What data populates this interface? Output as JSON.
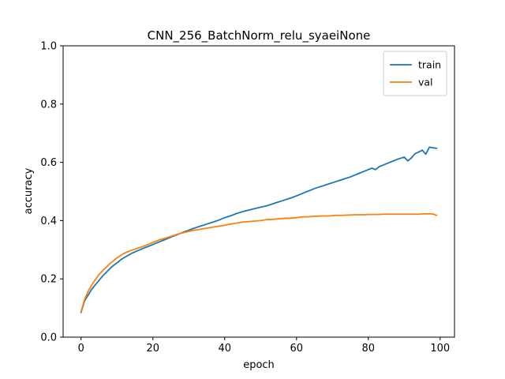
{
  "chart_data": {
    "type": "line",
    "title": "CNN_256_BatchNorm_relu_syaeiNone",
    "xlabel": "epoch",
    "ylabel": "accuracy",
    "xlim": [
      -5,
      104
    ],
    "ylim": [
      0.0,
      1.0
    ],
    "xticks": [
      0,
      20,
      40,
      60,
      80,
      100
    ],
    "yticks": [
      0.0,
      0.2,
      0.4,
      0.6,
      0.8,
      1.0
    ],
    "xtick_labels": [
      "0",
      "20",
      "40",
      "60",
      "80",
      "100"
    ],
    "ytick_labels": [
      "0.0",
      "0.2",
      "0.4",
      "0.6",
      "0.8",
      "1.0"
    ],
    "grid": false,
    "legend": "top-right",
    "series": [
      {
        "name": "train",
        "color": "#1f77b4",
        "points": [
          [
            0,
            0.085
          ],
          [
            1,
            0.125
          ],
          [
            2,
            0.145
          ],
          [
            3,
            0.165
          ],
          [
            4,
            0.18
          ],
          [
            5,
            0.195
          ],
          [
            6,
            0.21
          ],
          [
            7,
            0.222
          ],
          [
            8,
            0.235
          ],
          [
            9,
            0.246
          ],
          [
            10,
            0.255
          ],
          [
            11,
            0.265
          ],
          [
            12,
            0.273
          ],
          [
            13,
            0.28
          ],
          [
            14,
            0.287
          ],
          [
            15,
            0.293
          ],
          [
            16,
            0.298
          ],
          [
            17,
            0.303
          ],
          [
            18,
            0.308
          ],
          [
            19,
            0.313
          ],
          [
            20,
            0.318
          ],
          [
            21,
            0.323
          ],
          [
            22,
            0.328
          ],
          [
            23,
            0.333
          ],
          [
            24,
            0.338
          ],
          [
            25,
            0.343
          ],
          [
            26,
            0.348
          ],
          [
            27,
            0.353
          ],
          [
            28,
            0.358
          ],
          [
            29,
            0.363
          ],
          [
            30,
            0.367
          ],
          [
            31,
            0.372
          ],
          [
            32,
            0.376
          ],
          [
            33,
            0.38
          ],
          [
            34,
            0.384
          ],
          [
            35,
            0.388
          ],
          [
            36,
            0.392
          ],
          [
            37,
            0.396
          ],
          [
            38,
            0.4
          ],
          [
            39,
            0.405
          ],
          [
            40,
            0.41
          ],
          [
            41,
            0.414
          ],
          [
            42,
            0.418
          ],
          [
            43,
            0.423
          ],
          [
            44,
            0.427
          ],
          [
            45,
            0.431
          ],
          [
            46,
            0.434
          ],
          [
            47,
            0.437
          ],
          [
            48,
            0.44
          ],
          [
            49,
            0.443
          ],
          [
            50,
            0.446
          ],
          [
            51,
            0.449
          ],
          [
            52,
            0.452
          ],
          [
            53,
            0.456
          ],
          [
            54,
            0.46
          ],
          [
            55,
            0.464
          ],
          [
            56,
            0.468
          ],
          [
            57,
            0.472
          ],
          [
            58,
            0.476
          ],
          [
            59,
            0.48
          ],
          [
            60,
            0.485
          ],
          [
            61,
            0.49
          ],
          [
            62,
            0.495
          ],
          [
            63,
            0.5
          ],
          [
            64,
            0.505
          ],
          [
            65,
            0.51
          ],
          [
            66,
            0.514
          ],
          [
            67,
            0.518
          ],
          [
            68,
            0.522
          ],
          [
            69,
            0.526
          ],
          [
            70,
            0.53
          ],
          [
            71,
            0.534
          ],
          [
            72,
            0.538
          ],
          [
            73,
            0.542
          ],
          [
            74,
            0.546
          ],
          [
            75,
            0.55
          ],
          [
            76,
            0.555
          ],
          [
            77,
            0.56
          ],
          [
            78,
            0.565
          ],
          [
            79,
            0.57
          ],
          [
            80,
            0.575
          ],
          [
            81,
            0.58
          ],
          [
            82,
            0.575
          ],
          [
            83,
            0.585
          ],
          [
            84,
            0.59
          ],
          [
            85,
            0.595
          ],
          [
            86,
            0.6
          ],
          [
            87,
            0.605
          ],
          [
            88,
            0.61
          ],
          [
            89,
            0.614
          ],
          [
            90,
            0.618
          ],
          [
            91,
            0.605
          ],
          [
            92,
            0.615
          ],
          [
            93,
            0.63
          ],
          [
            94,
            0.635
          ],
          [
            95,
            0.642
          ],
          [
            96,
            0.628
          ],
          [
            97,
            0.652
          ],
          [
            98,
            0.65
          ],
          [
            99,
            0.648
          ]
        ]
      },
      {
        "name": "val",
        "color": "#ff7f0e",
        "points": [
          [
            0,
            0.088
          ],
          [
            1,
            0.13
          ],
          [
            2,
            0.158
          ],
          [
            3,
            0.18
          ],
          [
            4,
            0.198
          ],
          [
            5,
            0.215
          ],
          [
            6,
            0.228
          ],
          [
            7,
            0.24
          ],
          [
            8,
            0.252
          ],
          [
            9,
            0.262
          ],
          [
            10,
            0.272
          ],
          [
            11,
            0.28
          ],
          [
            12,
            0.288
          ],
          [
            13,
            0.293
          ],
          [
            14,
            0.298
          ],
          [
            15,
            0.302
          ],
          [
            16,
            0.306
          ],
          [
            17,
            0.31
          ],
          [
            18,
            0.315
          ],
          [
            19,
            0.32
          ],
          [
            20,
            0.325
          ],
          [
            21,
            0.33
          ],
          [
            22,
            0.335
          ],
          [
            23,
            0.338
          ],
          [
            24,
            0.342
          ],
          [
            25,
            0.346
          ],
          [
            26,
            0.35
          ],
          [
            27,
            0.354
          ],
          [
            28,
            0.357
          ],
          [
            29,
            0.36
          ],
          [
            30,
            0.363
          ],
          [
            31,
            0.366
          ],
          [
            32,
            0.368
          ],
          [
            33,
            0.37
          ],
          [
            34,
            0.372
          ],
          [
            35,
            0.374
          ],
          [
            36,
            0.376
          ],
          [
            37,
            0.378
          ],
          [
            38,
            0.38
          ],
          [
            39,
            0.382
          ],
          [
            40,
            0.384
          ],
          [
            41,
            0.387
          ],
          [
            42,
            0.389
          ],
          [
            43,
            0.391
          ],
          [
            44,
            0.393
          ],
          [
            45,
            0.395
          ],
          [
            46,
            0.396
          ],
          [
            47,
            0.397
          ],
          [
            48,
            0.398
          ],
          [
            49,
            0.399
          ],
          [
            50,
            0.4
          ],
          [
            51,
            0.402
          ],
          [
            52,
            0.404
          ],
          [
            53,
            0.404
          ],
          [
            54,
            0.405
          ],
          [
            55,
            0.406
          ],
          [
            56,
            0.407
          ],
          [
            57,
            0.408
          ],
          [
            58,
            0.408
          ],
          [
            59,
            0.409
          ],
          [
            60,
            0.41
          ],
          [
            61,
            0.412
          ],
          [
            62,
            0.413
          ],
          [
            63,
            0.413
          ],
          [
            64,
            0.414
          ],
          [
            65,
            0.415
          ],
          [
            66,
            0.415
          ],
          [
            67,
            0.416
          ],
          [
            68,
            0.416
          ],
          [
            69,
            0.416
          ],
          [
            70,
            0.417
          ],
          [
            71,
            0.418
          ],
          [
            72,
            0.418
          ],
          [
            73,
            0.418
          ],
          [
            74,
            0.419
          ],
          [
            75,
            0.419
          ],
          [
            76,
            0.42
          ],
          [
            77,
            0.42
          ],
          [
            78,
            0.42
          ],
          [
            79,
            0.42
          ],
          [
            80,
            0.421
          ],
          [
            81,
            0.421
          ],
          [
            82,
            0.421
          ],
          [
            83,
            0.421
          ],
          [
            84,
            0.422
          ],
          [
            85,
            0.422
          ],
          [
            86,
            0.422
          ],
          [
            87,
            0.422
          ],
          [
            88,
            0.422
          ],
          [
            89,
            0.422
          ],
          [
            90,
            0.422
          ],
          [
            91,
            0.422
          ],
          [
            92,
            0.422
          ],
          [
            93,
            0.422
          ],
          [
            94,
            0.422
          ],
          [
            95,
            0.423
          ],
          [
            96,
            0.423
          ],
          [
            97,
            0.423
          ],
          [
            98,
            0.423
          ],
          [
            99,
            0.418
          ]
        ]
      }
    ]
  }
}
